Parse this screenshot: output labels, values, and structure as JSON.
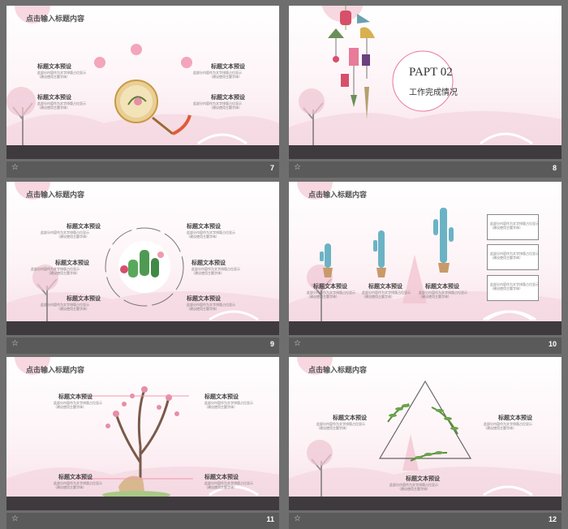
{
  "slides": [
    {
      "number": "7",
      "title": "点击输入标题内容",
      "labels": [
        "标题文本预设",
        "标题文本预设",
        "标题文本预设",
        "标题文本预设"
      ],
      "desc_line1": "此部分内容作为文字排版占位显示",
      "desc_line2": "（建议使用主题字体）"
    },
    {
      "number": "8",
      "part": "PAPT",
      "part_no": "02",
      "section": "工作完成情况"
    },
    {
      "number": "9",
      "title": "点击输入标题内容",
      "labels": [
        "标题文本预设",
        "标题文本预设",
        "标题文本预设",
        "标题文本预设",
        "标题文本预设",
        "标题文本预设"
      ],
      "desc_line1": "此部分内容作为文字排版占位显示",
      "desc_line2": "（建议使用主题字体）"
    },
    {
      "number": "10",
      "title": "点击输入标题内容",
      "labels": [
        "标题文本预设",
        "标题文本预设",
        "标题文本预设"
      ],
      "desc_line1": "此部分内容作为文字排版占位显示",
      "desc_line2": "（建议使用主题字体）"
    },
    {
      "number": "11",
      "title": "点击输入标题内容",
      "labels": [
        "标题文本预设",
        "标题文本预设",
        "标题文本预设",
        "标题文本预设"
      ],
      "desc_line1": "此部分内容作为文字排版占位显示",
      "desc_line2": "（建议使用主题字体）"
    },
    {
      "number": "12",
      "title": "点击输入标题内容",
      "labels": [
        "标题文本预设",
        "标题文本预设",
        "标题文本预设"
      ],
      "desc_line1": "此部分内容作为文字排版占位显示",
      "desc_line2": "（建议使用主题字体）"
    }
  ],
  "icons": {
    "star": "star-icon"
  },
  "colors": {
    "accent": "#e87a9a",
    "background": "#6e6e6e",
    "ground": "#3f3a3d",
    "pink": "#f3c6d3"
  }
}
